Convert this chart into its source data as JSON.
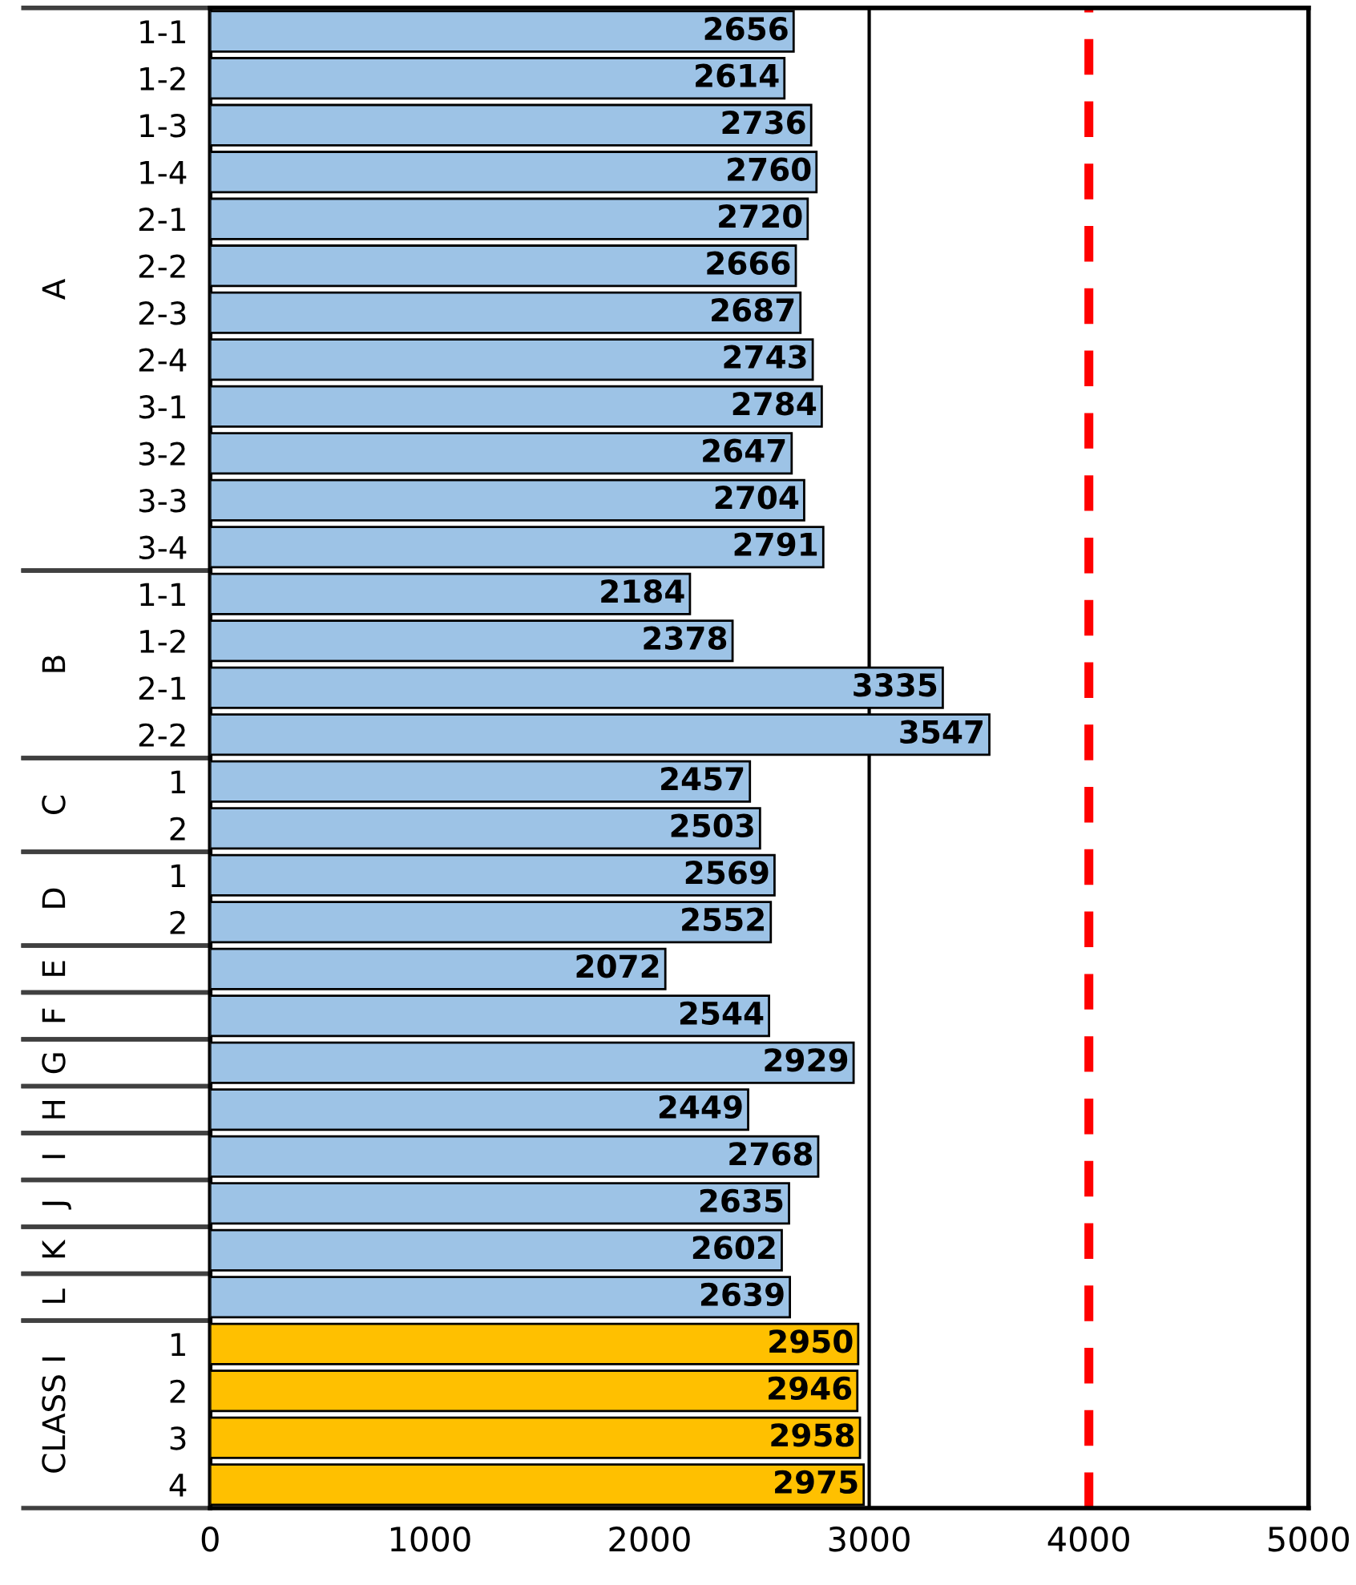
{
  "chart_data": {
    "type": "bar",
    "orientation": "horizontal",
    "categories": [
      "1-1",
      "1-2",
      "1-3",
      "1-4",
      "2-1",
      "2-2",
      "2-3",
      "2-4",
      "3-1",
      "3-2",
      "3-3",
      "3-4",
      "1-1",
      "1-2",
      "2-1",
      "2-2",
      "1",
      "2",
      "1",
      "2",
      null,
      null,
      null,
      null,
      null,
      null,
      null,
      null,
      "1",
      "2",
      "3",
      "4"
    ],
    "values": [
      2656,
      2614,
      2736,
      2760,
      2720,
      2666,
      2687,
      2743,
      2784,
      2647,
      2704,
      2791,
      2184,
      2378,
      3335,
      3547,
      2457,
      2503,
      2569,
      2552,
      2072,
      2544,
      2929,
      2449,
      2768,
      2635,
      2602,
      2639,
      2950,
      2946,
      2958,
      2975
    ],
    "colors": [
      "#9dc3e6",
      "#9dc3e6",
      "#9dc3e6",
      "#9dc3e6",
      "#9dc3e6",
      "#9dc3e6",
      "#9dc3e6",
      "#9dc3e6",
      "#9dc3e6",
      "#9dc3e6",
      "#9dc3e6",
      "#9dc3e6",
      "#9dc3e6",
      "#9dc3e6",
      "#9dc3e6",
      "#9dc3e6",
      "#9dc3e6",
      "#9dc3e6",
      "#9dc3e6",
      "#9dc3e6",
      "#9dc3e6",
      "#9dc3e6",
      "#9dc3e6",
      "#9dc3e6",
      "#9dc3e6",
      "#9dc3e6",
      "#9dc3e6",
      "#9dc3e6",
      "#ffc000",
      "#ffc000",
      "#ffc000",
      "#ffc000"
    ],
    "annotations": [
      "A",
      "B",
      "C",
      "D",
      "E",
      "F",
      "G",
      "H",
      "I",
      "J",
      "K",
      "L",
      "CLASS I"
    ],
    "xlim": [
      0,
      5000
    ],
    "xticks": [
      0,
      1000,
      2000,
      3000,
      4000,
      5000
    ],
    "ref_lines": [
      {
        "axis": "x",
        "value": 3000,
        "color": "#000000",
        "line_style": "solid"
      },
      {
        "axis": "x",
        "value": 4000,
        "color": "#ff0000",
        "line_style": "dashed"
      }
    ],
    "data_labels": true,
    "grid": false
  }
}
